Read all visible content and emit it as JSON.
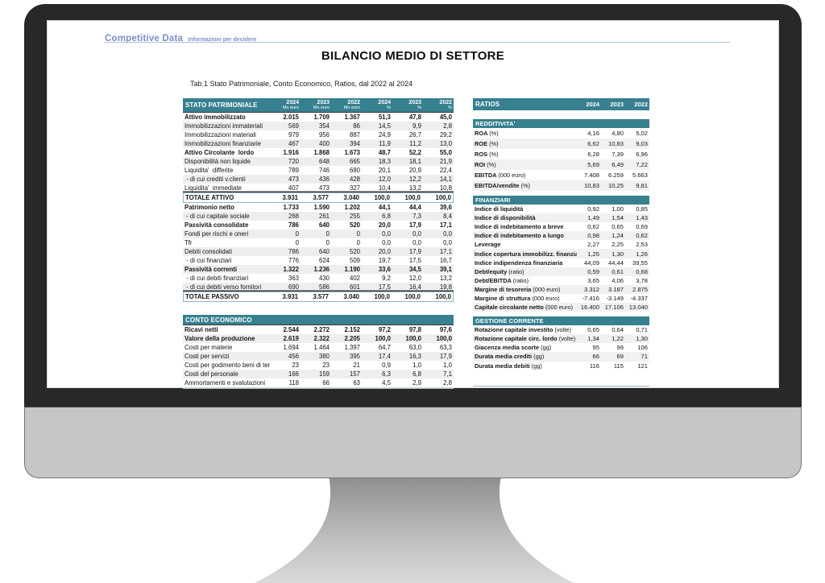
{
  "brand": {
    "name": "Competitive Data",
    "tagline": "informazioni per decidere"
  },
  "title": "BILANCIO MEDIO DI SETTORE",
  "subtitle": "Tab.1 Stato Patrimoniale, Conto Economico, Ratios, dal 2022 al 2024",
  "colors": {
    "teal": "#37808f",
    "brand_blue": "#7b90c4",
    "rule_blue": "#aebfdd",
    "stripe": "#eeeeee",
    "total_border": "#8db5c5"
  },
  "stato_patrimoniale": {
    "title": "STATO PATRIMONIALE",
    "columns": [
      {
        "year": "2024",
        "sub": "Mn euro"
      },
      {
        "year": "2023",
        "sub": "Mn euro"
      },
      {
        "year": "2022",
        "sub": "Mn euro"
      },
      {
        "year": "2024",
        "sub": "%"
      },
      {
        "year": "2023",
        "sub": "%"
      },
      {
        "year": "2022",
        "sub": "%"
      }
    ],
    "rows": [
      {
        "label": "Attivo immobilizzato",
        "style": "bold",
        "vals": [
          "2.015",
          "1.709",
          "1.367",
          "51,3",
          "47,8",
          "45,0"
        ]
      },
      {
        "label": "Immobilizzazioni immateriali",
        "style": "normal",
        "vals": [
          "569",
          "354",
          "86",
          "14,5",
          "9,9",
          "2,8"
        ]
      },
      {
        "label": "Immobilizzazioni materiali",
        "style": "normal",
        "vals": [
          "979",
          "956",
          "887",
          "24,9",
          "26,7",
          "29,2"
        ]
      },
      {
        "label": "Immobilizzazioni finanziarie",
        "style": "normal",
        "vals": [
          "467",
          "400",
          "394",
          "11,9",
          "11,2",
          "13,0"
        ]
      },
      {
        "label": "Attivo Circolante  lordo",
        "style": "bold",
        "vals": [
          "1.916",
          "1.868",
          "1.673",
          "48,7",
          "52,2",
          "55,0"
        ]
      },
      {
        "label": "Disponibilità non liquide",
        "style": "normal",
        "vals": [
          "720",
          "648",
          "665",
          "18,3",
          "18,1",
          "21,9"
        ]
      },
      {
        "label": "Liquidita'  differite",
        "style": "normal",
        "vals": [
          "789",
          "746",
          "680",
          "20,1",
          "20,9",
          "22,4"
        ]
      },
      {
        "label": " - di cui crediti v.clienti",
        "style": "normal",
        "vals": [
          "473",
          "436",
          "428",
          "12,0",
          "12,2",
          "14,1"
        ]
      },
      {
        "label": "Liquidita'  immediate",
        "style": "normal",
        "vals": [
          "407",
          "473",
          "327",
          "10,4",
          "13,2",
          "10,8"
        ]
      },
      {
        "label": "TOTALE ATTIVO",
        "style": "total",
        "vals": [
          "3.931",
          "3.577",
          "3.040",
          "100,0",
          "100,0",
          "100,0"
        ]
      },
      {
        "label": "Patrimonio netto",
        "style": "bold",
        "vals": [
          "1.733",
          "1.590",
          "1.202",
          "44,1",
          "44,4",
          "39,6"
        ]
      },
      {
        "label": " - di cui capitale sociale",
        "style": "normal",
        "vals": [
          "268",
          "261",
          "255",
          "6,8",
          "7,3",
          "8,4"
        ]
      },
      {
        "label": "Passività consolidate",
        "style": "bold",
        "vals": [
          "786",
          "640",
          "520",
          "20,0",
          "17,9",
          "17,1"
        ]
      },
      {
        "label": "Fondi per rischi e oneri",
        "style": "normal",
        "vals": [
          "0",
          "0",
          "0",
          "0,0",
          "0,0",
          "0,0"
        ]
      },
      {
        "label": "Tfr",
        "style": "normal",
        "vals": [
          "0",
          "0",
          "0",
          "0,0",
          "0,0",
          "0,0"
        ]
      },
      {
        "label": "Debiti consolidati",
        "style": "normal",
        "vals": [
          "786",
          "640",
          "520",
          "20,0",
          "17,9",
          "17,1"
        ]
      },
      {
        "label": " - di cui finanziari",
        "style": "normal",
        "vals": [
          "776",
          "624",
          "509",
          "19,7",
          "17,5",
          "16,7"
        ]
      },
      {
        "label": "Passività correnti",
        "style": "bold",
        "vals": [
          "1.322",
          "1.236",
          "1.190",
          "33,6",
          "34,5",
          "39,1"
        ]
      },
      {
        "label": " - di cui debiti finanziari",
        "style": "normal",
        "vals": [
          "363",
          "430",
          "402",
          "9,2",
          "12,0",
          "13,2"
        ]
      },
      {
        "label": " - di cui debiti verso fornitori",
        "style": "normal",
        "vals": [
          "690",
          "586",
          "601",
          "17,5",
          "16,4",
          "19,8"
        ]
      },
      {
        "label": "TOTALE PASSIVO",
        "style": "total",
        "vals": [
          "3.931",
          "3.577",
          "3.040",
          "100,0",
          "100,0",
          "100,0"
        ]
      }
    ]
  },
  "conto_economico": {
    "title": "CONTO ECONOMICO",
    "rows": [
      {
        "label": "Ricavi netti",
        "style": "bold",
        "vals": [
          "2.544",
          "2.272",
          "2.152",
          "97,2",
          "97,8",
          "97,6"
        ]
      },
      {
        "label": "Valore della produzione",
        "style": "bold",
        "vals": [
          "2.619",
          "2.322",
          "2.205",
          "100,0",
          "100,0",
          "100,0"
        ]
      },
      {
        "label": "Costi per materie",
        "style": "normal",
        "vals": [
          "1.694",
          "1.464",
          "1.397",
          "64,7",
          "63,0",
          "63,3"
        ]
      },
      {
        "label": "Costi per servizi",
        "style": "normal",
        "vals": [
          "456",
          "380",
          "395",
          "17,4",
          "16,3",
          "17,9"
        ]
      },
      {
        "label": "Costi per godimento beni di terzi",
        "style": "normal",
        "vals": [
          "23",
          "23",
          "21",
          "0,9",
          "1,0",
          "1,0"
        ]
      },
      {
        "label": "Costi del personale",
        "style": "normal",
        "vals": [
          "166",
          "159",
          "157",
          "6,3",
          "6,8",
          "7,1"
        ]
      },
      {
        "label": "Ammortamenti e svalutazioni",
        "style": "normal",
        "vals": [
          "118",
          "66",
          "63",
          "4,5",
          "2,9",
          "2,8"
        ]
      }
    ]
  },
  "ratios": {
    "title": "RATIOS",
    "years": [
      "2024",
      "2023",
      "2022"
    ],
    "sections": [
      {
        "name": "REDDITIVITA'",
        "rows": [
          {
            "label": "ROA",
            "unit": "(%)",
            "vals": [
              "4,16",
              "4,80",
              "5,02"
            ]
          },
          {
            "label": "ROE",
            "unit": "(%)",
            "vals": [
              "6,62",
              "10,83",
              "9,03"
            ]
          },
          {
            "label": "ROS",
            "unit": "(%)",
            "vals": [
              "6,28",
              "7,39",
              "6,96"
            ]
          },
          {
            "label": "ROI",
            "unit": "(%)",
            "vals": [
              "5,69",
              "6,49",
              "7,22"
            ]
          },
          {
            "label": "EBITDA",
            "unit": "(000 euro)",
            "vals": [
              "7.408",
              "6.259",
              "5.663"
            ]
          },
          {
            "label": "EBITDA/vendite",
            "unit": "(%)",
            "vals": [
              "10,83",
              "10,25",
              "9,81"
            ]
          }
        ]
      },
      {
        "name": "FINANZIARI",
        "rows": [
          {
            "label": "Indice di liquidità",
            "unit": "",
            "vals": [
              "0,92",
              "1,00",
              "0,85"
            ]
          },
          {
            "label": "Indice di disponibilità",
            "unit": "",
            "vals": [
              "1,49",
              "1,54",
              "1,43"
            ]
          },
          {
            "label": "Indice di indebitamento a breve",
            "unit": "",
            "vals": [
              "0,62",
              "0,65",
              "0,69"
            ]
          },
          {
            "label": "Indice di indebitamento a lungo",
            "unit": "",
            "vals": [
              "0,98",
              "1,24",
              "0,62"
            ]
          },
          {
            "label": "Leverage",
            "unit": "",
            "vals": [
              "2,27",
              "2,25",
              "2,53"
            ]
          },
          {
            "label": "Indice copertura immobilizz. finanziarie",
            "unit": "",
            "vals": [
              "1,25",
              "1,30",
              "1,26"
            ]
          },
          {
            "label": "Indice indipendenza finanziaria",
            "unit": "",
            "vals": [
              "44,09",
              "44,44",
              "39,55"
            ]
          },
          {
            "label": "Debt/equity",
            "unit": "(ratio)",
            "vals": [
              "0,59",
              "0,61",
              "0,68"
            ]
          },
          {
            "label": "Debt/EBITDA",
            "unit": "(ratio)",
            "vals": [
              "3,65",
              "4,06",
              "3,78"
            ]
          },
          {
            "label": "Margine di tesoreria",
            "unit": "(000 euro)",
            "vals": [
              "3.312",
              "3.187",
              "2.875"
            ]
          },
          {
            "label": "Margine di struttura",
            "unit": "(000 euro)",
            "vals": [
              "-7.416",
              "-3.149",
              "-4.337"
            ]
          },
          {
            "label": "Capitale circolante netto",
            "unit": "(000 euro)",
            "vals": [
              "16.400",
              "17.106",
              "13.040"
            ]
          }
        ]
      },
      {
        "name": "GESTIONE CORRENTE",
        "rows": [
          {
            "label": "Rotazione capitale investito",
            "unit": "(volte)",
            "vals": [
              "0,65",
              "0,64",
              "0,71"
            ]
          },
          {
            "label": "Rotazione capitale circ. lordo",
            "unit": "(volte)",
            "vals": [
              "1,34",
              "1,22",
              "1,30"
            ]
          },
          {
            "label": "Giacenza media scorte",
            "unit": "(gg)",
            "vals": [
              "95",
              "99",
              "106"
            ]
          },
          {
            "label": "Durata media crediti",
            "unit": "(gg)",
            "vals": [
              "66",
              "69",
              "71"
            ]
          },
          {
            "label": "Durata media debiti",
            "unit": "(gg)",
            "vals": [
              "116",
              "115",
              "121"
            ]
          }
        ]
      }
    ]
  }
}
